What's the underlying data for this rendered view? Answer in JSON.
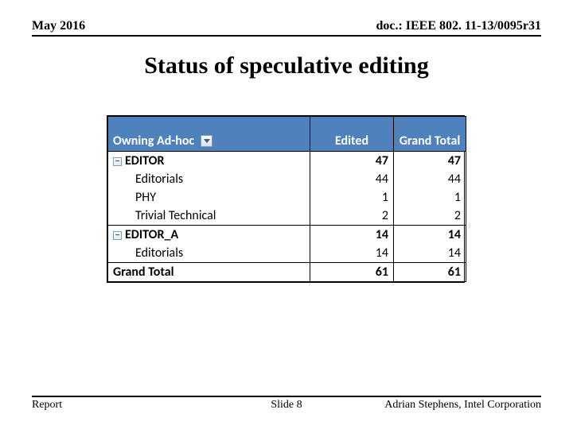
{
  "header": {
    "left": "May 2016",
    "right": "doc.: IEEE 802. 11-13/0095r31"
  },
  "title": "Status of speculative editing",
  "table": {
    "columns": {
      "c1": "Owning Ad-hoc",
      "c2": "Edited",
      "c3": "Grand Total"
    },
    "rows": [
      {
        "kind": "group",
        "label": "EDITOR",
        "edited": "47",
        "total": "47",
        "expand": "−"
      },
      {
        "kind": "sub",
        "label": "Editorials",
        "edited": "44",
        "total": "44"
      },
      {
        "kind": "sub",
        "label": "PHY",
        "edited": "1",
        "total": "1"
      },
      {
        "kind": "sub",
        "label": "Trivial Technical",
        "edited": "2",
        "total": "2"
      },
      {
        "kind": "group",
        "label": "EDITOR_A",
        "edited": "14",
        "total": "14",
        "expand": "−"
      },
      {
        "kind": "sub",
        "label": "Editorials",
        "edited": "14",
        "total": "14"
      },
      {
        "kind": "total",
        "label": "Grand Total",
        "edited": "61",
        "total": "61"
      }
    ]
  },
  "footer": {
    "left": "Report",
    "center": "Slide 8",
    "right": "Adrian Stephens, Intel Corporation"
  }
}
